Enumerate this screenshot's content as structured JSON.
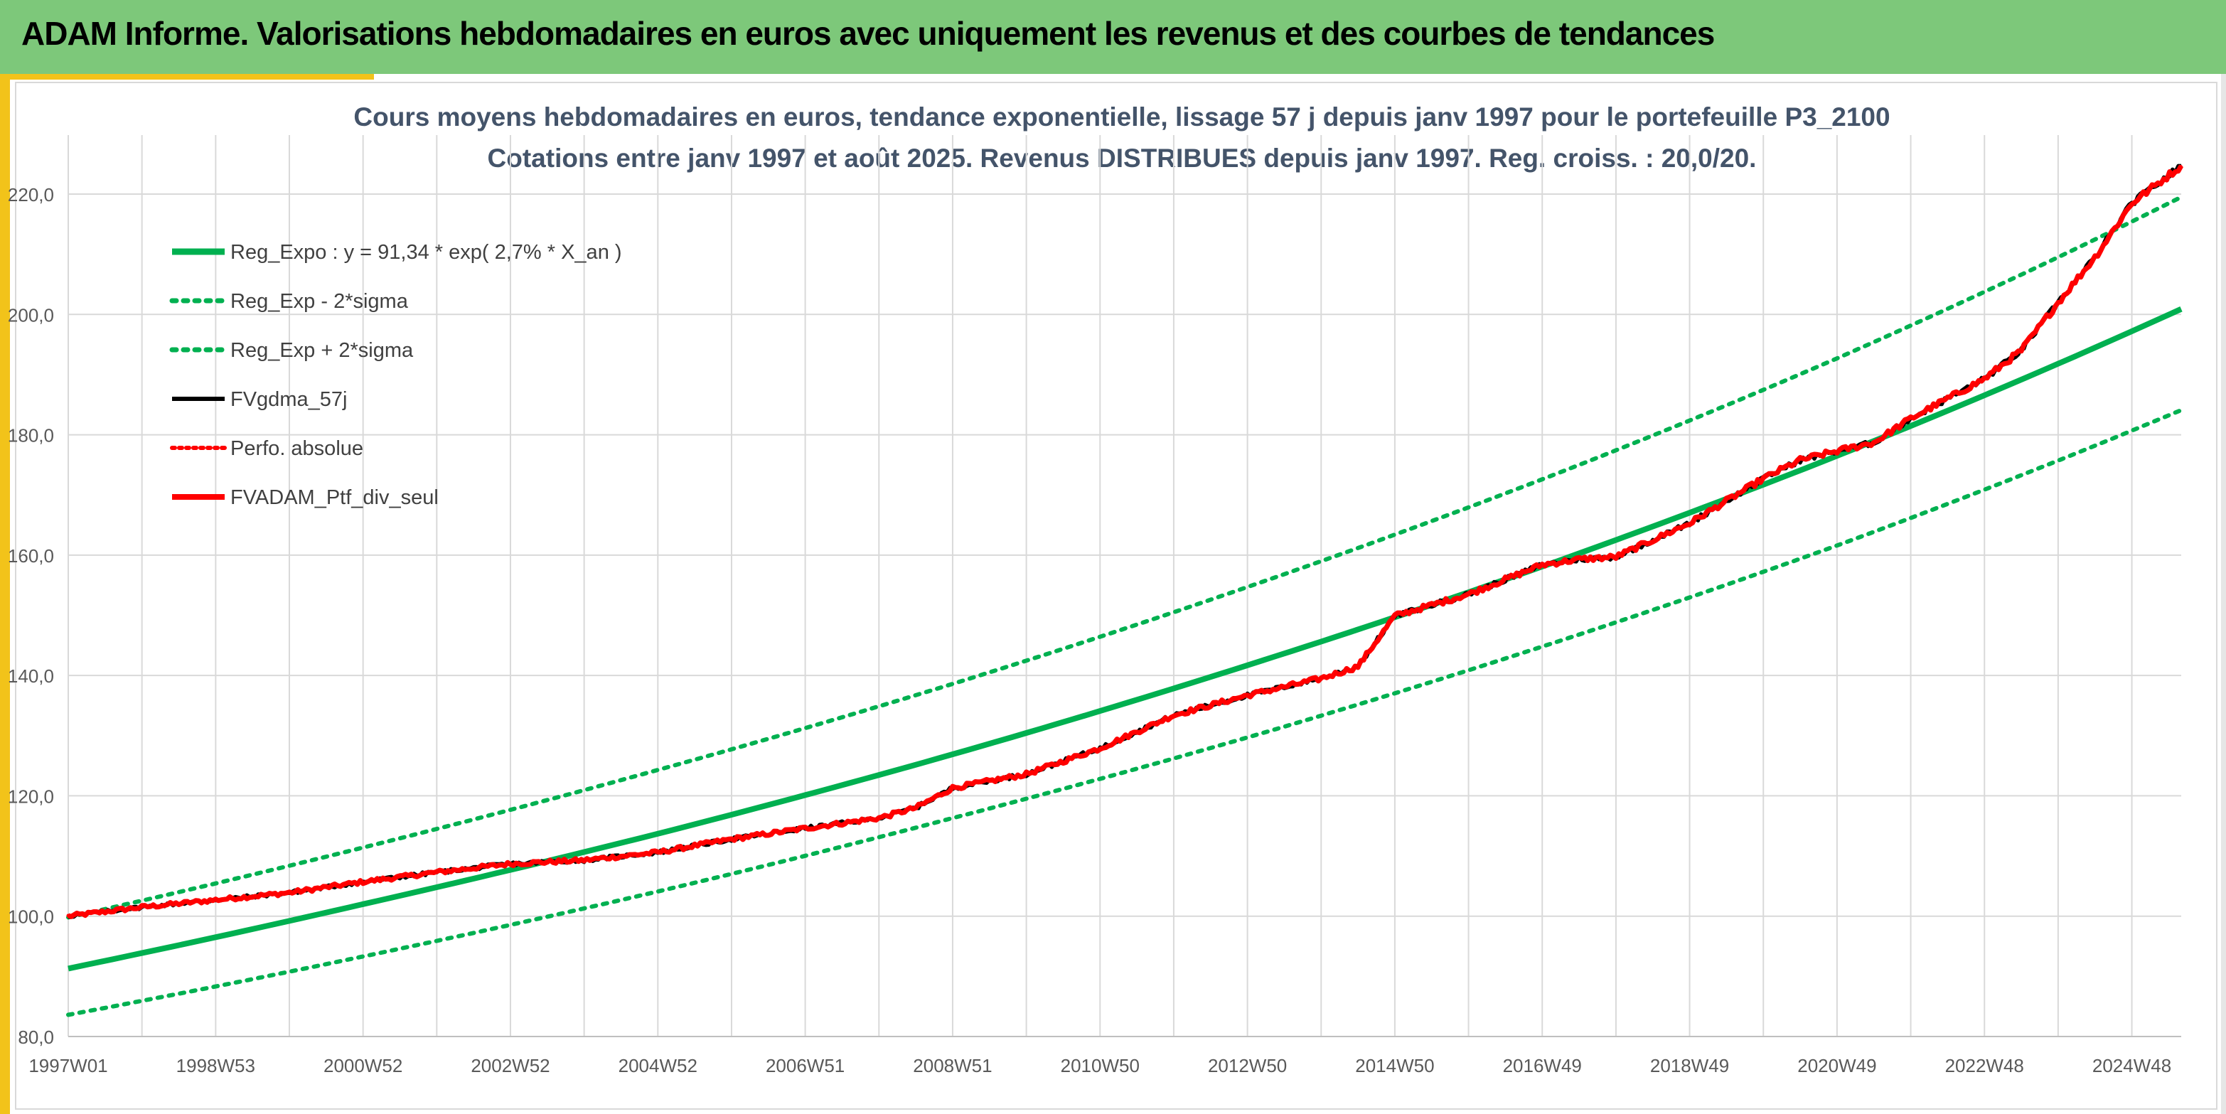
{
  "header": {
    "title": "ADAM Informe. Valorisations hebdomadaires en euros avec uniquement les revenus et des courbes de tendances"
  },
  "colors": {
    "header_bg": "#7dc87a",
    "accent": "#f2c31a",
    "green": "#00b050",
    "red": "#ff0000",
    "black": "#000000"
  },
  "chart_data": {
    "type": "line",
    "title": "Cours moyens hebdomadaires en euros, tendance exponentielle, lissage 57 j depuis janv 1997 pour le portefeuille P3_2100",
    "subtitle": "Cotations entre janv 1997 et août 2025. Revenus DISTRIBUES depuis janv 1997. Reg. croiss. : 20,0/20.",
    "xlim": [
      1997.0,
      2025.67
    ],
    "ylim": [
      80,
      225
    ],
    "grid": true,
    "legend_position": "top-left",
    "x_ticks": [
      {
        "label": "1997W01",
        "x": 1997.0
      },
      {
        "label": "1998W53",
        "x": 1999.0
      },
      {
        "label": "2000W52",
        "x": 2001.0
      },
      {
        "label": "2002W52",
        "x": 2003.0
      },
      {
        "label": "2004W52",
        "x": 2005.0
      },
      {
        "label": "2006W51",
        "x": 2007.0
      },
      {
        "label": "2008W51",
        "x": 2009.0
      },
      {
        "label": "2010W50",
        "x": 2011.0
      },
      {
        "label": "2012W50",
        "x": 2013.0
      },
      {
        "label": "2014W50",
        "x": 2015.0
      },
      {
        "label": "2016W49",
        "x": 2017.0
      },
      {
        "label": "2018W49",
        "x": 2019.0
      },
      {
        "label": "2020W49",
        "x": 2021.0
      },
      {
        "label": "2022W48",
        "x": 2023.0
      },
      {
        "label": "2024W48",
        "x": 2025.0
      }
    ],
    "y_ticks": [
      {
        "label": "80,0",
        "y": 80
      },
      {
        "label": "100,0",
        "y": 100
      },
      {
        "label": "120,0",
        "y": 120
      },
      {
        "label": "140,0",
        "y": 140
      },
      {
        "label": "160,0",
        "y": 160
      },
      {
        "label": "180,0",
        "y": 180
      },
      {
        "label": "200,0",
        "y": 200
      },
      {
        "label": "220,0",
        "y": 220
      }
    ],
    "x_grid": [
      1997.0,
      1998.0,
      1999.0,
      2000.0,
      2001.0,
      2002.0,
      2003.0,
      2004.0,
      2005.0,
      2006.0,
      2007.0,
      2008.0,
      2009.0,
      2010.0,
      2011.0,
      2012.0,
      2013.0,
      2014.0,
      2015.0,
      2016.0,
      2017.0,
      2018.0,
      2019.0,
      2020.0,
      2021.0,
      2022.0,
      2023.0,
      2024.0,
      2025.0
    ],
    "series": [
      {
        "name": "Reg_Expo : y = 91,34 * exp( 2,7% *  X_an )",
        "color": "#00b050",
        "style": "solid",
        "x": [
          1997.0,
          2001.0,
          2005.0,
          2009.0,
          2013.0,
          2017.0,
          2021.0,
          2025.67
        ],
        "y": [
          91.3,
          102.0,
          113.7,
          126.9,
          141.7,
          158.1,
          176.5,
          200.9
        ]
      },
      {
        "name": "Reg_Exp - 2*sigma",
        "color": "#00b050",
        "style": "dotted",
        "x": [
          1997.0,
          2001.0,
          2005.0,
          2009.0,
          2013.0,
          2017.0,
          2021.0,
          2025.67
        ],
        "y": [
          83.6,
          93.3,
          104.1,
          116.3,
          129.7,
          144.8,
          161.6,
          184.1
        ]
      },
      {
        "name": "Reg_Exp + 2*sigma",
        "color": "#00b050",
        "style": "dotted",
        "x": [
          1997.0,
          2001.0,
          2005.0,
          2009.0,
          2013.0,
          2017.0,
          2021.0,
          2025.67
        ],
        "y": [
          99.8,
          111.4,
          124.3,
          138.6,
          154.7,
          172.6,
          192.7,
          219.5
        ]
      },
      {
        "name": "FVgdma_57j",
        "color": "#000000",
        "style": "solid",
        "x": [
          1997.0,
          1998.0,
          1999.0,
          2000.0,
          2001.0,
          2002.0,
          2003.0,
          2004.0,
          2005.0,
          2006.0,
          2007.0,
          2008.0,
          2008.5,
          2009.0,
          2010.0,
          2011.0,
          2012.0,
          2013.0,
          2014.0,
          2014.5,
          2015.0,
          2016.0,
          2017.0,
          2017.5,
          2018.0,
          2019.0,
          2020.0,
          2020.5,
          2021.0,
          2021.5,
          2022.0,
          2023.0,
          2023.5,
          2024.0,
          2024.5,
          2025.0,
          2025.67
        ],
        "y": [
          100.0,
          101.5,
          102.7,
          103.9,
          105.7,
          107.3,
          108.7,
          109.3,
          110.6,
          112.8,
          114.6,
          116.3,
          118.0,
          121.3,
          123.6,
          127.9,
          133.4,
          136.7,
          139.5,
          141.5,
          149.9,
          153.5,
          158.4,
          159.3,
          159.7,
          165.3,
          172.7,
          175.8,
          177.3,
          178.7,
          182.7,
          189.3,
          194.0,
          202.0,
          209.5,
          218.5,
          224.7
        ]
      },
      {
        "name": "Perfo. absolue",
        "color": "#ff0000",
        "style": "dotted",
        "x": [
          1997.0,
          1998.0,
          1999.0,
          2000.0,
          2001.0,
          2002.0,
          2003.0,
          2004.0,
          2005.0,
          2006.0,
          2007.0,
          2008.0,
          2008.5,
          2009.0,
          2010.0,
          2011.0,
          2012.0,
          2013.0,
          2014.0,
          2014.5,
          2015.0,
          2016.0,
          2017.0,
          2017.5,
          2018.0,
          2019.0,
          2020.0,
          2020.5,
          2021.0,
          2021.5,
          2022.0,
          2023.0,
          2023.5,
          2024.0,
          2024.5,
          2025.0,
          2025.67
        ],
        "y": [
          100.0,
          101.5,
          102.7,
          103.9,
          105.7,
          107.3,
          108.7,
          109.3,
          110.6,
          112.8,
          114.6,
          116.3,
          118.0,
          121.3,
          123.6,
          127.9,
          133.4,
          136.7,
          139.5,
          141.5,
          149.9,
          153.5,
          158.4,
          159.3,
          159.7,
          165.3,
          172.7,
          175.8,
          177.3,
          178.7,
          182.7,
          189.3,
          194.0,
          202.0,
          209.5,
          218.5,
          224.7
        ]
      },
      {
        "name": "FVADAM_Ptf_div_seul",
        "color": "#ff0000",
        "style": "solid",
        "x": [
          1997.0,
          1998.0,
          1999.0,
          2000.0,
          2001.0,
          2002.0,
          2003.0,
          2004.0,
          2005.0,
          2006.0,
          2007.0,
          2008.0,
          2008.5,
          2009.0,
          2010.0,
          2011.0,
          2012.0,
          2013.0,
          2014.0,
          2014.5,
          2015.0,
          2016.0,
          2017.0,
          2017.5,
          2018.0,
          2019.0,
          2020.0,
          2020.5,
          2021.0,
          2021.5,
          2022.0,
          2023.0,
          2023.5,
          2024.0,
          2024.5,
          2025.0,
          2025.67
        ],
        "y": [
          100.0,
          101.5,
          102.7,
          103.9,
          105.7,
          107.3,
          108.7,
          109.3,
          110.6,
          112.8,
          114.6,
          116.3,
          118.0,
          121.3,
          123.6,
          127.9,
          133.4,
          136.7,
          139.5,
          141.5,
          149.9,
          153.5,
          158.4,
          159.3,
          159.7,
          165.3,
          172.7,
          175.8,
          177.3,
          178.7,
          182.7,
          189.3,
          194.0,
          202.0,
          209.5,
          218.5,
          224.7
        ]
      }
    ]
  }
}
